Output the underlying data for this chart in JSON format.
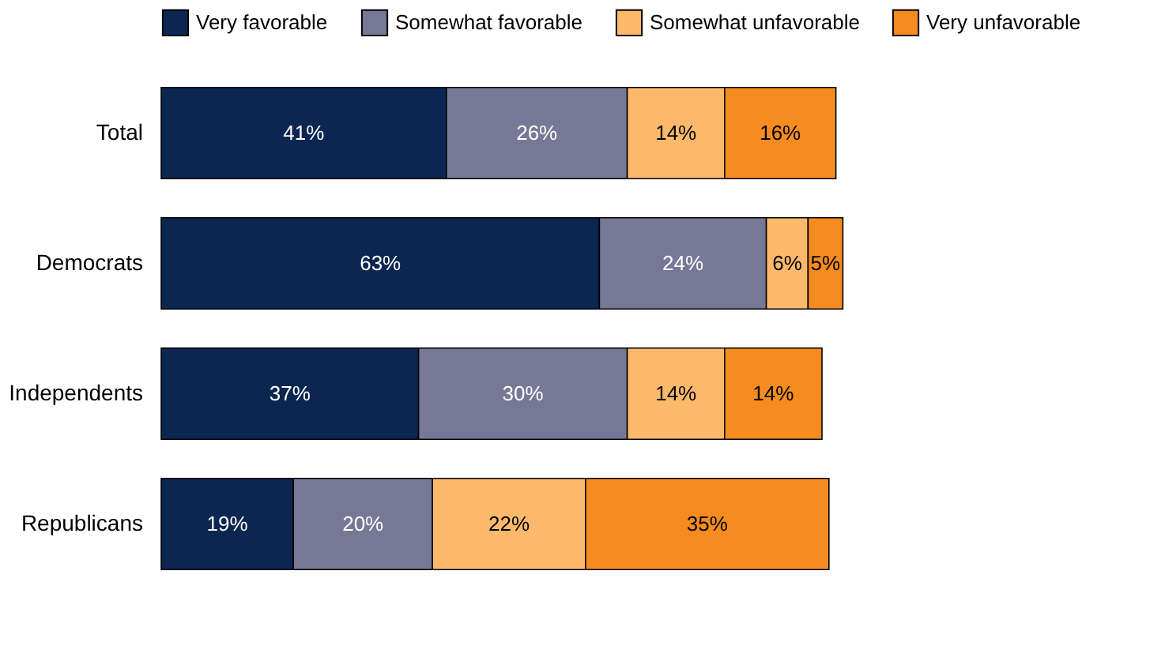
{
  "chart_data": {
    "type": "bar",
    "orientation": "horizontal",
    "stacked": true,
    "legend": "top",
    "grid": false,
    "categories": [
      "Total",
      "Democrats",
      "Independents",
      "Republicans"
    ],
    "series": [
      {
        "name": "Very favorable",
        "color": "#0b2650",
        "values": [
          41,
          63,
          37,
          19
        ],
        "value_labels": [
          "41%",
          "63%",
          "37%",
          "19%"
        ]
      },
      {
        "name": "Somewhat favorable",
        "color": "#767896",
        "values": [
          26,
          24,
          30,
          20
        ],
        "value_labels": [
          "26%",
          "24%",
          "30%",
          "20%"
        ]
      },
      {
        "name": "Somewhat unfavorable",
        "color": "#fdb96b",
        "values": [
          14,
          6,
          14,
          22
        ],
        "value_labels": [
          "14%",
          "6%",
          "14%",
          "22%"
        ]
      },
      {
        "name": "Very unfavorable",
        "color": "#f68b1f",
        "values": [
          16,
          5,
          14,
          35
        ],
        "value_labels": [
          "16%",
          "5%",
          "14%",
          "35%"
        ]
      }
    ]
  }
}
